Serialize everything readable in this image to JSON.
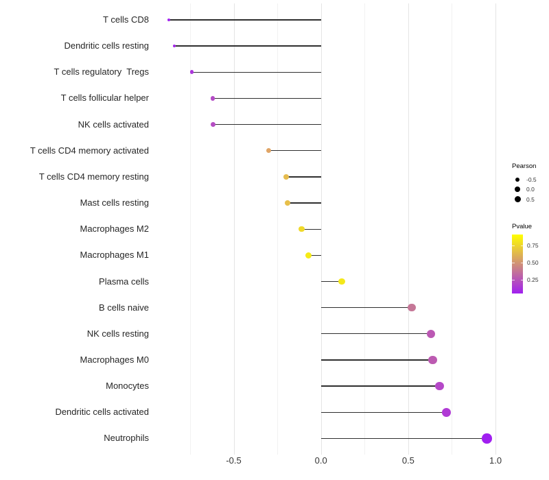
{
  "chart_data": {
    "type": "lollipop",
    "title": "",
    "xlabel": "",
    "ylabel": "",
    "grid": "vertical-only",
    "x_axis": {
      "min": -0.966,
      "max": 1.043,
      "major_ticks": [
        -0.5,
        0.0,
        0.5,
        1.0
      ],
      "major_tick_labels": [
        "-0.5",
        "0.0",
        "0.5",
        "1.0"
      ],
      "minor_gridlines": [
        -0.75,
        -0.25,
        0.25,
        0.75
      ]
    },
    "points": [
      {
        "label": "T cells CD8",
        "pearson": -0.87,
        "pvalue": 0.09,
        "color": "#A124EE",
        "radius": 2.0
      },
      {
        "label": "Dendritic cells resting",
        "pearson": -0.84,
        "pvalue": 0.1,
        "color": "#A527E9",
        "radius": 2.3
      },
      {
        "label": "T cells regulatory  Tregs",
        "pearson": -0.74,
        "pvalue": 0.14,
        "color": "#AB35DB",
        "radius": 2.9
      },
      {
        "label": "T cells follicular helper",
        "pearson": -0.62,
        "pvalue": 0.21,
        "color": "#B44BC6",
        "radius": 3.4
      },
      {
        "label": "NK cells activated",
        "pearson": -0.62,
        "pvalue": 0.22,
        "color": "#B54DC3",
        "radius": 3.5
      },
      {
        "label": "T cells CD4 memory activated",
        "pearson": -0.3,
        "pvalue": 0.55,
        "color": "#E0A566",
        "radius": 3.7
      },
      {
        "label": "T cells CD4 memory resting",
        "pearson": -0.2,
        "pvalue": 0.63,
        "color": "#E6BC4E",
        "radius": 4.0
      },
      {
        "label": "Mast cells resting",
        "pearson": -0.19,
        "pvalue": 0.64,
        "color": "#E7BF4A",
        "radius": 4.1
      },
      {
        "label": "Macrophages M2",
        "pearson": -0.11,
        "pvalue": 0.76,
        "color": "#F0D92A",
        "radius": 4.3
      },
      {
        "label": "Macrophages M1",
        "pearson": -0.07,
        "pvalue": 0.86,
        "color": "#F6EB16",
        "radius": 4.5
      },
      {
        "label": "Plasma cells",
        "pearson": 0.12,
        "pvalue": 0.84,
        "color": "#F4E81A",
        "radius": 4.8
      },
      {
        "label": "B cells naive",
        "pearson": 0.52,
        "pvalue": 0.39,
        "color": "#C57797",
        "radius": 5.8
      },
      {
        "label": "NK cells resting",
        "pearson": 0.63,
        "pvalue": 0.29,
        "color": "#BB58B3",
        "radius": 6.1
      },
      {
        "label": "Macrophages M0",
        "pearson": 0.64,
        "pvalue": 0.3,
        "color": "#BC5AB1",
        "radius": 6.2
      },
      {
        "label": "Monocytes",
        "pearson": 0.68,
        "pvalue": 0.24,
        "color": "#B548C8",
        "radius": 6.4
      },
      {
        "label": "Dendritic cells activated",
        "pearson": 0.72,
        "pvalue": 0.19,
        "color": "#B03AD5",
        "radius": 6.6
      },
      {
        "label": "Neutrophils",
        "pearson": 0.95,
        "pvalue": 0.08,
        "color": "#A01FF0",
        "radius": 7.2
      }
    ]
  },
  "legend": {
    "pearson": {
      "title": "Pearson",
      "dot_color": "#000000",
      "entries": [
        {
          "label": "-0.5",
          "radius": 3.0
        },
        {
          "label": "0.0",
          "radius": 4.0
        },
        {
          "label": "0.5",
          "radius": 4.5
        }
      ]
    },
    "pvalue": {
      "title": "Pvalue",
      "gradient_low_color": "#A020F0",
      "gradient_high_color": "#FFFF00",
      "scale_min": 0.06,
      "scale_max": 0.91,
      "ticks": [
        {
          "label": "0.75",
          "value": 0.75
        },
        {
          "label": "0.50",
          "value": 0.5
        },
        {
          "label": "0.25",
          "value": 0.25
        }
      ]
    }
  },
  "colors": {
    "background": "#ffffff",
    "segment": "#2e2e2e",
    "grid_major": "#e4e4e4",
    "grid_minor": "#f1f1f1",
    "axis_text": "#333333"
  }
}
